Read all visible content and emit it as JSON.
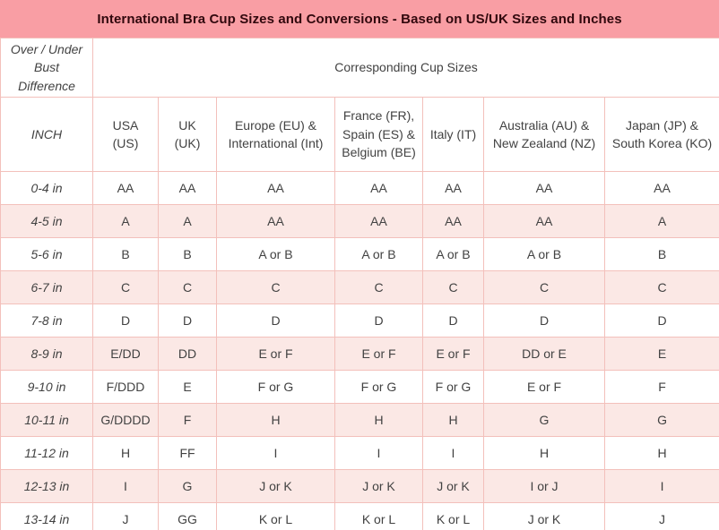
{
  "title": "International Bra Cup Sizes and Conversions - Based on US/UK Sizes and Inches",
  "header": {
    "corner_label": "Over / Under Bust Difference",
    "span_label": "Corresponding Cup Sizes",
    "inch_label": "INCH",
    "columns": [
      "USA (US)",
      "UK (UK)",
      "Europe (EU) & International (Int)",
      "France (FR), Spain (ES) & Belgium (BE)",
      "Italy (IT)",
      "Australia (AU) & New Zealand (NZ)",
      "Japan (JP) & South Korea (KO)"
    ]
  },
  "rows": [
    {
      "inch": "0-4 in",
      "values": [
        "AA",
        "AA",
        "AA",
        "AA",
        "AA",
        "AA",
        "AA"
      ]
    },
    {
      "inch": "4-5 in",
      "values": [
        "A",
        "A",
        "AA",
        "AA",
        "AA",
        "AA",
        "A"
      ]
    },
    {
      "inch": "5-6 in",
      "values": [
        "B",
        "B",
        "A or B",
        "A or B",
        "A or B",
        "A or B",
        "B"
      ]
    },
    {
      "inch": "6-7 in",
      "values": [
        "C",
        "C",
        "C",
        "C",
        "C",
        "C",
        "C"
      ]
    },
    {
      "inch": "7-8 in",
      "values": [
        "D",
        "D",
        "D",
        "D",
        "D",
        "D",
        "D"
      ]
    },
    {
      "inch": "8-9 in",
      "values": [
        "E/DD",
        "DD",
        "E or F",
        "E or F",
        "E or F",
        "DD or E",
        "E"
      ]
    },
    {
      "inch": "9-10 in",
      "values": [
        "F/DDD",
        "E",
        "F or G",
        "F or G",
        "F or G",
        "E or F",
        "F"
      ]
    },
    {
      "inch": "10-11 in",
      "values": [
        "G/DDDD",
        "F",
        "H",
        "H",
        "H",
        "G",
        "G"
      ]
    },
    {
      "inch": "11-12 in",
      "values": [
        "H",
        "FF",
        "I",
        "I",
        "I",
        "H",
        "H"
      ]
    },
    {
      "inch": "12-13 in",
      "values": [
        "I",
        "G",
        "J or K",
        "J or K",
        "J or K",
        "I or J",
        "I"
      ]
    },
    {
      "inch": "13-14 in",
      "values": [
        "J",
        "GG",
        "K or L",
        "K or L",
        "K or L",
        "J or K",
        "J"
      ]
    }
  ],
  "colors": {
    "title_bg": "#f99ea4",
    "title_text": "#31080d",
    "row_alt_bg": "#fbe8e5",
    "border": "#f3c0bb",
    "cell_text": "#424242"
  }
}
